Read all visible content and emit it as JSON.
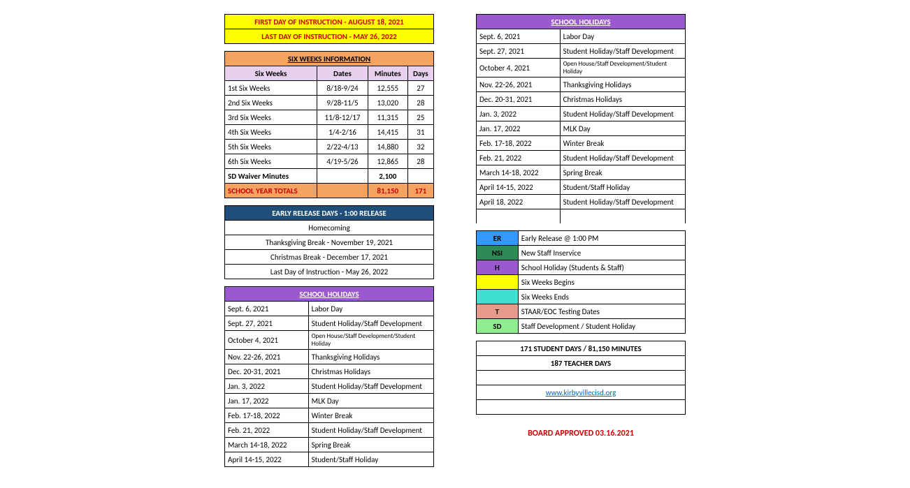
{
  "instruction": {
    "first": "FIRST DAY OF INSTRUCTION - AUGUST 18, 2021",
    "last": "LAST DAY OF INSTRUCTION - MAY 26, 2022"
  },
  "sixweeks": {
    "header": "SIX WEEKS INFORMATION",
    "cols": [
      "Six Weeks",
      "Dates",
      "Minutes",
      "Days"
    ],
    "rows": [
      [
        "1st Six Weeks",
        "8/18-9/24",
        "12,555",
        "27"
      ],
      [
        "2nd Six Weeks",
        "9/28-11/5",
        "13,020",
        "28"
      ],
      [
        "3rd Six Weeks",
        "11/8-12/17",
        "11,315",
        "25"
      ],
      [
        "4th Six Weeks",
        "1/4-2/16",
        "14,415",
        "31"
      ],
      [
        "5th Six Weeks",
        "2/22-4/13",
        "14,880",
        "32"
      ],
      [
        "6th Six Weeks",
        "4/19-5/26",
        "12,865",
        "28"
      ]
    ],
    "waiver": [
      "SD Waiver Minutes",
      "",
      "2,100",
      ""
    ],
    "totals": [
      "SCHOOL YEAR TOTALS",
      "",
      "81,150",
      "171"
    ]
  },
  "early": {
    "header": "EARLY RELEASE DAYS - 1:00 RELEASE",
    "rows": [
      "Homecoming",
      "Thanksgiving Break - November 19, 2021",
      "Christmas Break - December 17, 2021",
      "Last Day of Instruction - May 26, 2022"
    ]
  },
  "holidays": {
    "header": "SCHOOL HOLIDAYS",
    "rows": [
      [
        "Sept. 6, 2021",
        "Labor Day"
      ],
      [
        "Sept. 27, 2021",
        "Student Holiday/Staff Development"
      ],
      [
        "October 4, 2021",
        "Open House/Staff Development/Student Holiday"
      ],
      [
        "Nov. 22-26, 2021",
        "Thanksgiving Holidays"
      ],
      [
        "Dec. 20-31, 2021",
        "Christmas Holidays"
      ],
      [
        "Jan. 3, 2022",
        "Student Holiday/Staff Development"
      ],
      [
        "Jan. 17, 2022",
        "MLK Day"
      ],
      [
        "Feb. 17-18, 2022",
        "Winter Break"
      ],
      [
        "Feb. 21, 2022",
        "Student Holiday/Staff Development"
      ],
      [
        "March 14-18, 2022",
        "Spring Break"
      ],
      [
        "April 14-15, 2022",
        "Student/Staff Holiday"
      ]
    ]
  },
  "holidays2": {
    "header": "SCHOOL HOLIDAYS",
    "rows": [
      [
        "Sept. 6, 2021",
        "Labor Day"
      ],
      [
        "Sept. 27, 2021",
        "Student Holiday/Staff Development"
      ],
      [
        "October 4, 2021",
        "Open House/Staff Development/Student Holiday"
      ],
      [
        "Nov. 22-26, 2021",
        "Thanksgiving Holidays"
      ],
      [
        "Dec. 20-31, 2021",
        "Christmas Holidays"
      ],
      [
        "Jan. 3, 2022",
        "Student Holiday/Staff Development"
      ],
      [
        "Jan. 17, 2022",
        "MLK Day"
      ],
      [
        "Feb. 17-18, 2022",
        "Winter Break"
      ],
      [
        "Feb. 21, 2022",
        "Student Holiday/Staff Development"
      ],
      [
        "March 14-18, 2022",
        "Spring Break"
      ],
      [
        "April 14-15, 2022",
        "Student/Staff Holiday"
      ],
      [
        "April 18, 2022",
        "Student Holiday/Staff Development"
      ]
    ]
  },
  "legend": [
    {
      "code": "ER",
      "bg": "#3399ff",
      "desc": "Early Release @ 1:00 PM"
    },
    {
      "code": "NSI",
      "bg": "#2e8b57",
      "desc": "New Staff Inservice"
    },
    {
      "code": "H",
      "bg": "#9b59d0",
      "desc": "School Holiday (Students & Staff)"
    },
    {
      "code": "",
      "bg": "#ffff00",
      "desc": "Six Weeks Begins"
    },
    {
      "code": "",
      "bg": "#40e0d0",
      "desc": "Six Weeks Ends"
    },
    {
      "code": "T",
      "bg": "#e89a8a",
      "desc": "STAAR/EOC Testing Dates"
    },
    {
      "code": "SD",
      "bg": "#90ee90",
      "desc": "Staff Development / Student Holiday"
    }
  ],
  "summary": {
    "days": "171 STUDENT DAYS / 81,150 MINUTES",
    "teacher": "187 TEACHER DAYS",
    "link": "www.kirbyvillecisd.org"
  },
  "approved": "BOARD APPROVED 03.16.2021",
  "colors": {
    "yellow": "#ffff00",
    "orange": "#f4a460",
    "navy": "#1f4e78",
    "purple": "#9b59d0",
    "lav": "#e8d0ef"
  }
}
